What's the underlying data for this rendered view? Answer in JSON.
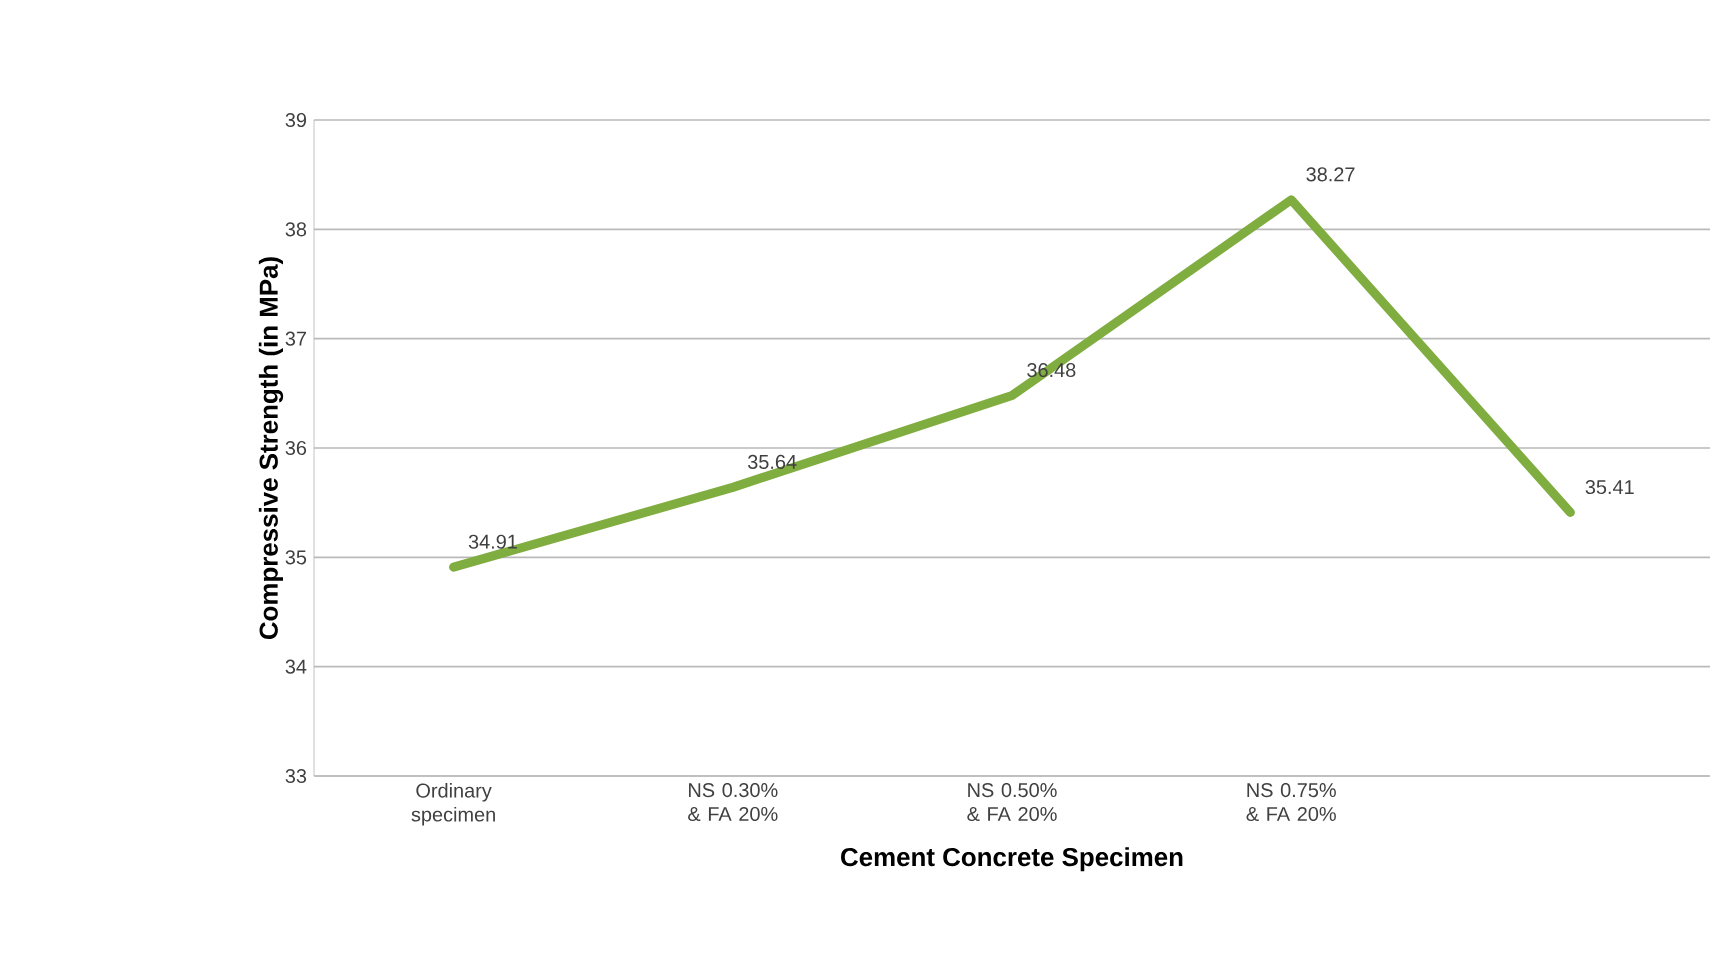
{
  "chart_data": {
    "type": "line",
    "xlabel": "Cement Concrete Specimen",
    "ylabel": "Compressive Strength  (in MPa)",
    "categories": [
      "Ordinary specimen",
      "NS 0.30% & FA 20%",
      "NS 0.50% & FA 20%",
      "NS 0.75% & FA 20%",
      null
    ],
    "values": [
      34.91,
      35.64,
      36.48,
      38.27,
      35.41
    ],
    "color": "#80ad40",
    "ylim": [
      33,
      39
    ],
    "yticks": [
      33,
      34,
      35,
      36,
      37,
      38,
      39
    ],
    "grid": "y",
    "data_labels": true,
    "marker": "none",
    "line_style": "solid"
  }
}
